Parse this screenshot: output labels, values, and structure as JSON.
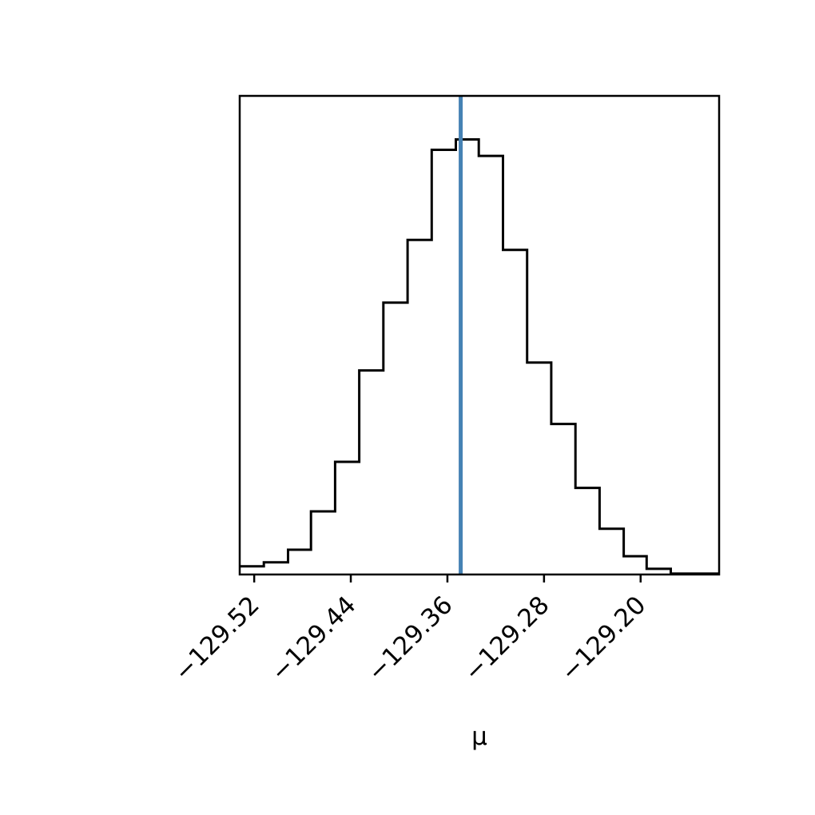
{
  "chart_data": {
    "type": "histogram",
    "title": "",
    "xlabel": "μ",
    "ylabel": "",
    "xlim": [
      -129.532,
      -129.135
    ],
    "ylim": [
      0,
      1.1
    ],
    "grid": false,
    "legend": "none",
    "x_ticks": [
      {
        "value": -129.52,
        "label": "−129.52"
      },
      {
        "value": -129.44,
        "label": "−129.44"
      },
      {
        "value": -129.36,
        "label": "−129.36"
      },
      {
        "value": -129.28,
        "label": "−129.28"
      },
      {
        "value": -129.2,
        "label": "−129.20"
      }
    ],
    "bins": [
      {
        "x0": -129.532,
        "x1": -129.512,
        "value": 0.019
      },
      {
        "x0": -129.512,
        "x1": -129.492,
        "value": 0.028
      },
      {
        "x0": -129.492,
        "x1": -129.473,
        "value": 0.057
      },
      {
        "x0": -129.473,
        "x1": -129.453,
        "value": 0.145
      },
      {
        "x0": -129.453,
        "x1": -129.433,
        "value": 0.259
      },
      {
        "x0": -129.433,
        "x1": -129.413,
        "value": 0.469
      },
      {
        "x0": -129.413,
        "x1": -129.393,
        "value": 0.625
      },
      {
        "x0": -129.393,
        "x1": -129.373,
        "value": 0.769
      },
      {
        "x0": -129.373,
        "x1": -129.353,
        "value": 0.976
      },
      {
        "x0": -129.353,
        "x1": -129.334,
        "value": 1.0
      },
      {
        "x0": -129.334,
        "x1": -129.314,
        "value": 0.962
      },
      {
        "x0": -129.314,
        "x1": -129.294,
        "value": 0.746
      },
      {
        "x0": -129.294,
        "x1": -129.274,
        "value": 0.487
      },
      {
        "x0": -129.274,
        "x1": -129.254,
        "value": 0.346
      },
      {
        "x0": -129.254,
        "x1": -129.234,
        "value": 0.199
      },
      {
        "x0": -129.234,
        "x1": -129.214,
        "value": 0.105
      },
      {
        "x0": -129.214,
        "x1": -129.195,
        "value": 0.042
      },
      {
        "x0": -129.195,
        "x1": -129.175,
        "value": 0.013
      },
      {
        "x0": -129.175,
        "x1": -129.135,
        "value": 0.002
      }
    ],
    "truth_line": {
      "x": -129.349,
      "color": "#4682b4"
    },
    "bar_color": "#000000"
  }
}
